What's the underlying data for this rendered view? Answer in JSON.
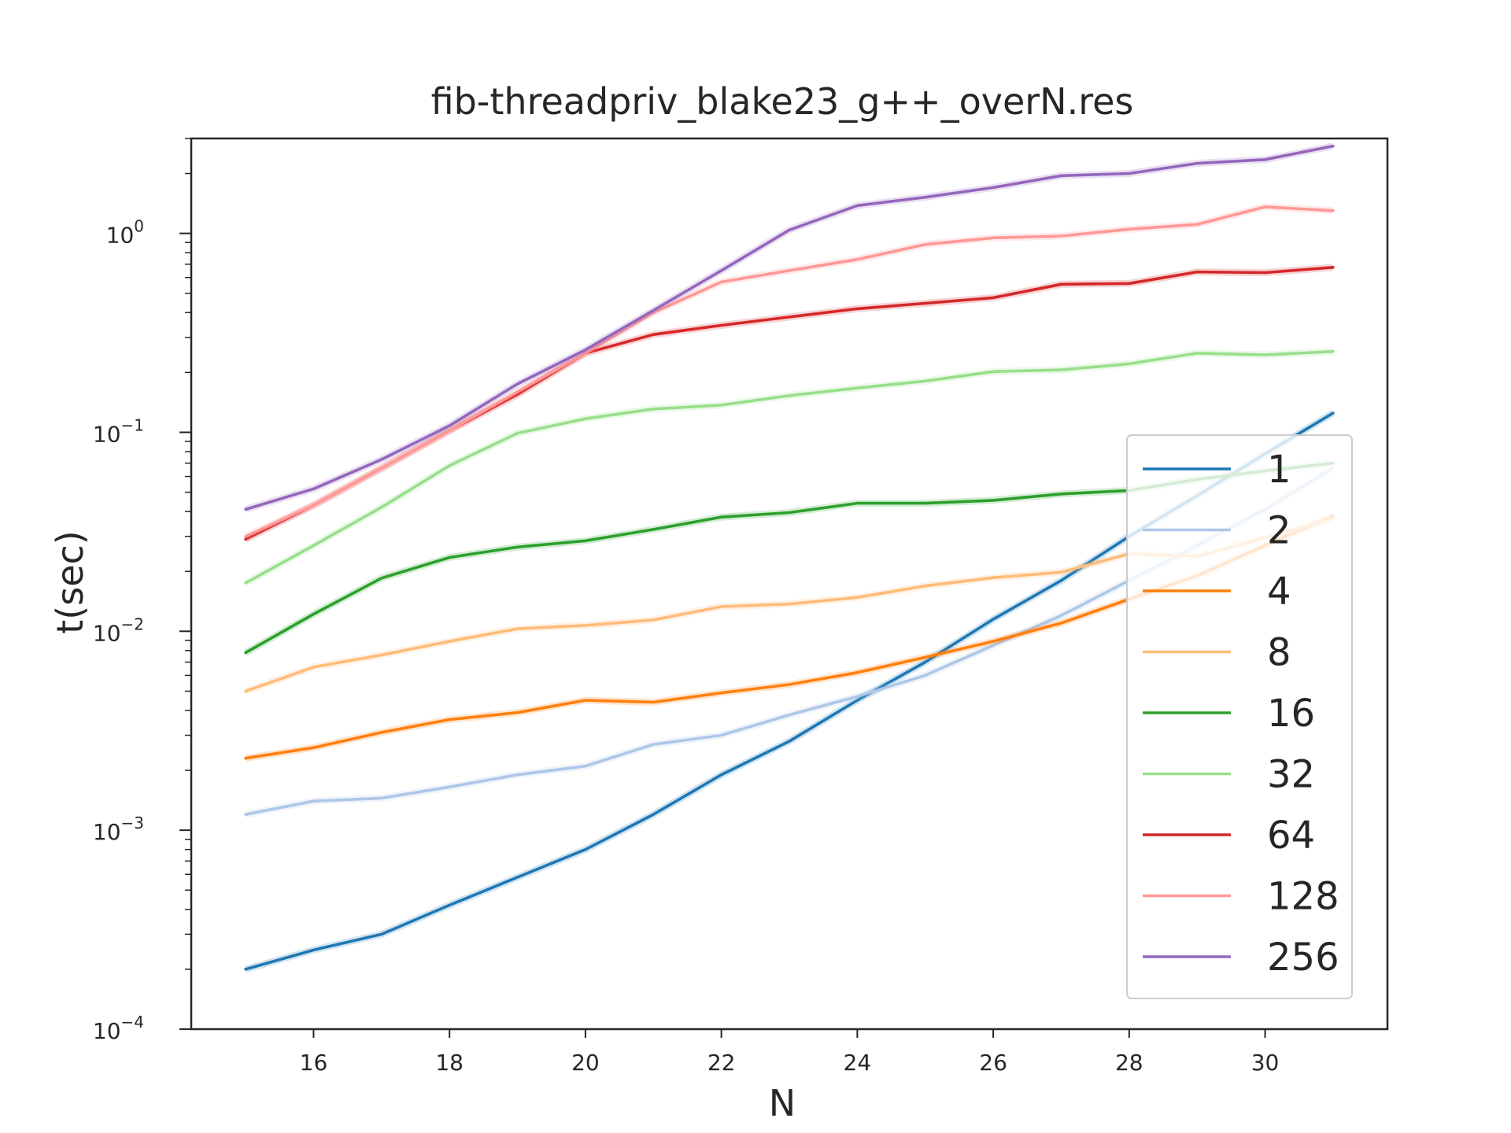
{
  "chart_data": {
    "type": "line",
    "title": "fib-threadpriv_blake23_g++_overN.res",
    "xlabel": "N",
    "ylabel": "t(sec)",
    "yscale": "log",
    "xlim": [
      14.2,
      31.8
    ],
    "ylim": [
      0.0001,
      3.0
    ],
    "x_ticks": [
      16,
      18,
      20,
      22,
      24,
      26,
      28,
      30
    ],
    "y_ticks": [
      {
        "base": "10",
        "exp": "−4",
        "value": 0.0001
      },
      {
        "base": "10",
        "exp": "−3",
        "value": 0.001
      },
      {
        "base": "10",
        "exp": "−2",
        "value": 0.01
      },
      {
        "base": "10",
        "exp": "−1",
        "value": 0.1
      },
      {
        "base": "10",
        "exp": "0",
        "value": 1
      }
    ],
    "legend_position": "lower-right",
    "grid": false,
    "x": [
      15,
      16,
      17,
      18,
      19,
      20,
      21,
      22,
      23,
      24,
      25,
      26,
      27,
      28,
      29,
      30,
      31
    ],
    "series": [
      {
        "name": "1",
        "color": "#1f77b4",
        "values": [
          0.0002,
          0.00025,
          0.0003,
          0.00042,
          0.00058,
          0.0008,
          0.0012,
          0.0019,
          0.0028,
          0.0045,
          0.007,
          0.0115,
          0.018,
          0.03,
          0.048,
          0.078,
          0.125
        ]
      },
      {
        "name": "2",
        "color": "#aec7e8",
        "values": [
          0.0012,
          0.0014,
          0.00145,
          0.00165,
          0.0019,
          0.0021,
          0.0027,
          0.003,
          0.0038,
          0.0047,
          0.006,
          0.0085,
          0.012,
          0.018,
          0.027,
          0.041,
          0.066
        ]
      },
      {
        "name": "4",
        "color": "#ff7f0e",
        "values": [
          0.0023,
          0.0026,
          0.0031,
          0.0036,
          0.0039,
          0.0045,
          0.0044,
          0.0049,
          0.0054,
          0.0062,
          0.0074,
          0.0089,
          0.011,
          0.0145,
          0.019,
          0.027,
          0.038
        ]
      },
      {
        "name": "8",
        "color": "#ffbb78",
        "values": [
          0.005,
          0.0066,
          0.0076,
          0.0089,
          0.0103,
          0.0107,
          0.0114,
          0.0133,
          0.0137,
          0.0148,
          0.0169,
          0.0186,
          0.0198,
          0.0245,
          0.0238,
          0.0295,
          0.037
        ]
      },
      {
        "name": "16",
        "color": "#2ca02c",
        "values": [
          0.0078,
          0.0122,
          0.0185,
          0.0235,
          0.0265,
          0.0285,
          0.0325,
          0.0375,
          0.0395,
          0.044,
          0.044,
          0.0455,
          0.049,
          0.051,
          0.058,
          0.064,
          0.07
        ]
      },
      {
        "name": "32",
        "color": "#98df8a",
        "values": [
          0.0175,
          0.027,
          0.042,
          0.068,
          0.099,
          0.117,
          0.131,
          0.137,
          0.153,
          0.167,
          0.181,
          0.202,
          0.206,
          0.221,
          0.25,
          0.245,
          0.255
        ]
      },
      {
        "name": "64",
        "color": "#d62728",
        "values": [
          0.029,
          0.043,
          0.066,
          0.102,
          0.155,
          0.25,
          0.31,
          0.345,
          0.38,
          0.418,
          0.445,
          0.475,
          0.555,
          0.56,
          0.64,
          0.635,
          0.675
        ]
      },
      {
        "name": "128",
        "color": "#ff9896",
        "values": [
          0.03,
          0.043,
          0.066,
          0.102,
          0.16,
          0.25,
          0.4,
          0.57,
          0.65,
          0.74,
          0.88,
          0.95,
          0.97,
          1.05,
          1.11,
          1.36,
          1.3
        ]
      },
      {
        "name": "256",
        "color": "#9467bd",
        "values": [
          0.041,
          0.052,
          0.073,
          0.108,
          0.175,
          0.26,
          0.41,
          0.65,
          1.04,
          1.38,
          1.52,
          1.7,
          1.95,
          2.0,
          2.25,
          2.35,
          2.75
        ]
      }
    ]
  }
}
